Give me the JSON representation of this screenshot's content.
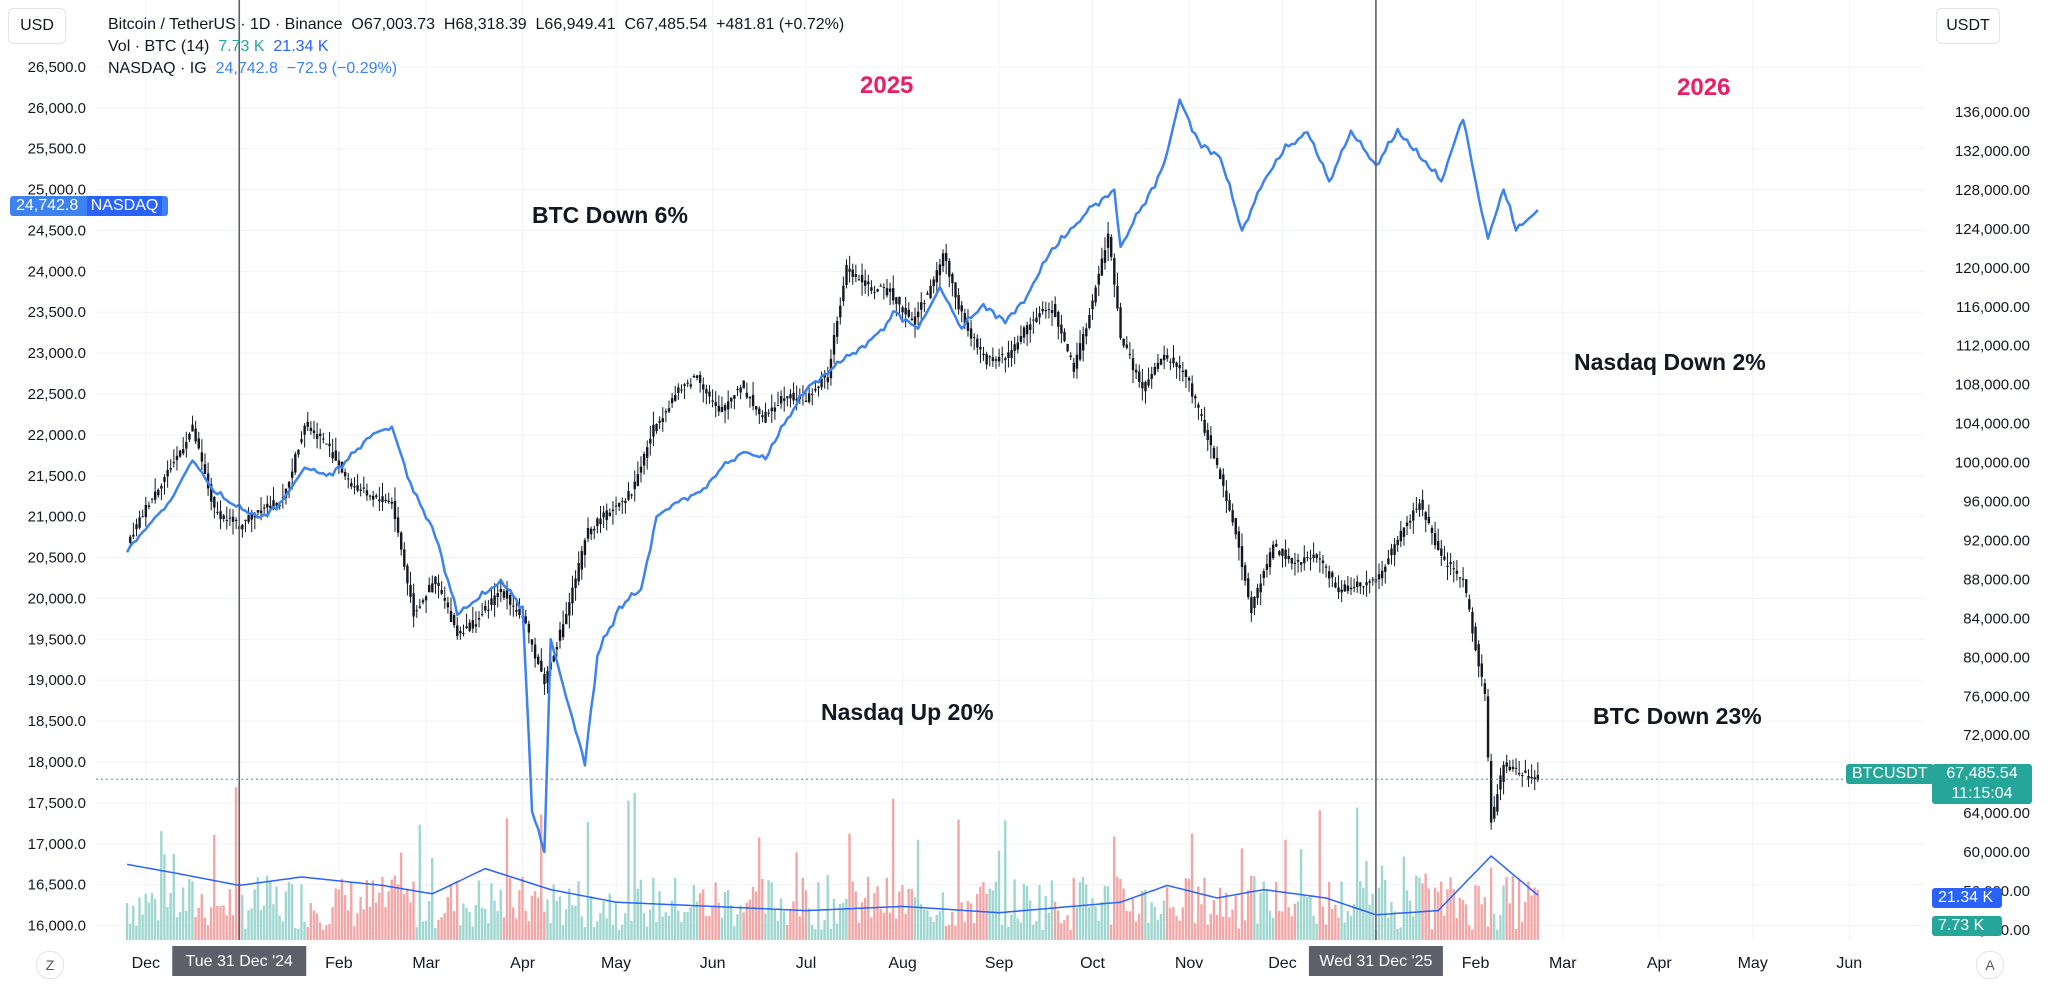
{
  "header": {
    "line1": {
      "symbol": "Bitcoin / TetherUS · 1D · Binance",
      "open": "O67,003.73",
      "high": "H68,318.39",
      "low": "L66,949.41",
      "close": "C67,485.54",
      "change": "+481.81 (+0.72%)"
    },
    "line2": {
      "label": "Vol · BTC (14)",
      "v1": "7.73 K",
      "v2": "21.34 K"
    },
    "line3": {
      "label": "NASDAQ · IG",
      "value": "24,742.8",
      "change": "−72.9 (−0.29%)"
    }
  },
  "units": {
    "left": "USD",
    "right": "USDT"
  },
  "tags": {
    "nasdaq_value": "24,742.8",
    "nasdaq_name": "NASDAQ",
    "btc_name": "BTCUSDT",
    "btc_price": "67,485.54",
    "btc_timer": "11:15:04",
    "vol_ma": "21.34 K",
    "vol": "7.73 K"
  },
  "annotations": {
    "year1": "2025",
    "year2": "2026",
    "btc_down_6": "BTC Down 6%",
    "nasdaq_down_2": "Nasdaq Down 2%",
    "nasdaq_up_20": "Nasdaq Up 20%",
    "btc_down_23": "BTC Down 23%"
  },
  "footer": {
    "z_button": "Z",
    "a_button": "A",
    "crosshair_label_1": "Tue 31 Dec '24",
    "crosshair_label_2": "Wed 31 Dec '25"
  },
  "colors": {
    "nasdaq_line": "#3c82f0",
    "candles": "#131722",
    "up_volume": "#9fd7d0",
    "down_volume": "#f3a6a6",
    "vol_ma": "#2962ff",
    "year_labels": "#e91e63",
    "btc_tag": "#26a69a"
  },
  "chart_data": {
    "type": "line",
    "title": "Bitcoin / TetherUS · 1D · Binance",
    "x_ticks": [
      "Dec",
      "Tue 31 Dec '24",
      "Feb",
      "Mar",
      "Apr",
      "May",
      "Jun",
      "Jul",
      "Aug",
      "Sep",
      "Oct",
      "Nov",
      "Dec",
      "Wed 31 Dec '25",
      "Feb",
      "Mar",
      "Apr",
      "May",
      "Jun"
    ],
    "left_axis": {
      "unit": "USD",
      "ticks": [
        "26,500.0",
        "26,000.0",
        "25,500.0",
        "25,000.0",
        "24,500.0",
        "24,000.0",
        "23,500.0",
        "23,000.0",
        "22,500.0",
        "22,000.0",
        "21,500.0",
        "21,000.0",
        "20,500.0",
        "20,000.0",
        "19,500.0",
        "19,000.0",
        "18,500.0",
        "18,000.0",
        "17,500.0",
        "17,000.0",
        "16,500.0",
        "16,000.0"
      ],
      "range": [
        15800,
        26800
      ]
    },
    "right_axis": {
      "unit": "USDT",
      "ticks": [
        "136,000.00",
        "132,000.00",
        "128,000.00",
        "124,000.00",
        "120,000.00",
        "116,000.00",
        "112,000.00",
        "108,000.00",
        "104,000.00",
        "100,000.00",
        "96,000.00",
        "92,000.00",
        "88,000.00",
        "84,000.00",
        "80,000.00",
        "76,000.00",
        "72,000.00",
        "68,000.00",
        "64,000.00",
        "60,000.00",
        "56,000.00",
        "52,000.00"
      ],
      "range": [
        51000,
        138500
      ]
    },
    "series": [
      {
        "name": "BTCUSDT",
        "axis": "right",
        "style": "candles",
        "points": [
          [
            "2024-11-25",
            91500
          ],
          [
            "2024-12-02",
            96000
          ],
          [
            "2024-12-09",
            99500
          ],
          [
            "2024-12-16",
            103500
          ],
          [
            "2024-12-23",
            95000
          ],
          [
            "2024-12-31",
            93500
          ],
          [
            "2025-01-07",
            95500
          ],
          [
            "2025-01-14",
            96000
          ],
          [
            "2025-01-21",
            104000
          ],
          [
            "2025-01-28",
            102000
          ],
          [
            "2025-02-04",
            98000
          ],
          [
            "2025-02-11",
            96500
          ],
          [
            "2025-02-18",
            96000
          ],
          [
            "2025-02-25",
            84500
          ],
          [
            "2025-03-04",
            88000
          ],
          [
            "2025-03-11",
            82500
          ],
          [
            "2025-03-18",
            84000
          ],
          [
            "2025-03-25",
            87000
          ],
          [
            "2025-04-01",
            84000
          ],
          [
            "2025-04-08",
            77500
          ],
          [
            "2025-04-15",
            84500
          ],
          [
            "2025-04-22",
            93000
          ],
          [
            "2025-04-29",
            95000
          ],
          [
            "2025-05-06",
            97000
          ],
          [
            "2025-05-13",
            103500
          ],
          [
            "2025-05-20",
            107000
          ],
          [
            "2025-05-27",
            109000
          ],
          [
            "2025-06-03",
            105000
          ],
          [
            "2025-06-10",
            108000
          ],
          [
            "2025-06-17",
            104500
          ],
          [
            "2025-06-24",
            107000
          ],
          [
            "2025-07-01",
            106500
          ],
          [
            "2025-07-08",
            109000
          ],
          [
            "2025-07-14",
            120000
          ],
          [
            "2025-07-21",
            118000
          ],
          [
            "2025-07-28",
            117500
          ],
          [
            "2025-08-04",
            114500
          ],
          [
            "2025-08-11",
            118500
          ],
          [
            "2025-08-14",
            121500
          ],
          [
            "2025-08-21",
            114000
          ],
          [
            "2025-08-28",
            110500
          ],
          [
            "2025-09-04",
            111000
          ],
          [
            "2025-09-11",
            114500
          ],
          [
            "2025-09-18",
            116000
          ],
          [
            "2025-09-25",
            109500
          ],
          [
            "2025-10-01",
            116500
          ],
          [
            "2025-10-06",
            123500
          ],
          [
            "2025-10-10",
            113000
          ],
          [
            "2025-10-17",
            107500
          ],
          [
            "2025-10-24",
            111000
          ],
          [
            "2025-10-31",
            109000
          ],
          [
            "2025-11-07",
            102500
          ],
          [
            "2025-11-14",
            95500
          ],
          [
            "2025-11-21",
            85000
          ],
          [
            "2025-11-28",
            91500
          ],
          [
            "2025-12-05",
            89500
          ],
          [
            "2025-12-12",
            90500
          ],
          [
            "2025-12-19",
            87000
          ],
          [
            "2025-12-26",
            87500
          ],
          [
            "2025-12-31",
            87800
          ],
          [
            "2026-01-07",
            92000
          ],
          [
            "2026-01-14",
            96000
          ],
          [
            "2026-01-21",
            90000
          ],
          [
            "2026-01-28",
            88000
          ],
          [
            "2026-02-04",
            76000
          ],
          [
            "2026-02-06",
            63000
          ],
          [
            "2026-02-10",
            69000
          ],
          [
            "2026-02-17",
            68000
          ],
          [
            "2026-02-21",
            67485.54
          ]
        ]
      },
      {
        "name": "NASDAQ",
        "axis": "left",
        "style": "line",
        "points": [
          [
            "2024-11-25",
            20600
          ],
          [
            "2024-12-02",
            20900
          ],
          [
            "2024-12-09",
            21200
          ],
          [
            "2024-12-16",
            21700
          ],
          [
            "2024-12-23",
            21300
          ],
          [
            "2024-12-31",
            21100
          ],
          [
            "2025-01-07",
            21000
          ],
          [
            "2025-01-14",
            21200
          ],
          [
            "2025-01-21",
            21600
          ],
          [
            "2025-01-28",
            21500
          ],
          [
            "2025-02-04",
            21700
          ],
          [
            "2025-02-11",
            22000
          ],
          [
            "2025-02-18",
            22100
          ],
          [
            "2025-02-25",
            21300
          ],
          [
            "2025-03-04",
            20800
          ],
          [
            "2025-03-11",
            19800
          ],
          [
            "2025-03-18",
            20000
          ],
          [
            "2025-03-25",
            20200
          ],
          [
            "2025-04-01",
            19900
          ],
          [
            "2025-04-04",
            17400
          ],
          [
            "2025-04-08",
            16900
          ],
          [
            "2025-04-10",
            19500
          ],
          [
            "2025-04-15",
            18800
          ],
          [
            "2025-04-21",
            18000
          ],
          [
            "2025-04-25",
            19300
          ],
          [
            "2025-05-02",
            19900
          ],
          [
            "2025-05-09",
            20100
          ],
          [
            "2025-05-14",
            21000
          ],
          [
            "2025-05-21",
            21200
          ],
          [
            "2025-05-28",
            21300
          ],
          [
            "2025-06-04",
            21600
          ],
          [
            "2025-06-11",
            21800
          ],
          [
            "2025-06-18",
            21700
          ],
          [
            "2025-06-25",
            22200
          ],
          [
            "2025-07-02",
            22600
          ],
          [
            "2025-07-09",
            22800
          ],
          [
            "2025-07-16",
            23000
          ],
          [
            "2025-07-23",
            23200
          ],
          [
            "2025-07-30",
            23500
          ],
          [
            "2025-08-06",
            23300
          ],
          [
            "2025-08-13",
            23800
          ],
          [
            "2025-08-20",
            23300
          ],
          [
            "2025-08-27",
            23600
          ],
          [
            "2025-09-03",
            23400
          ],
          [
            "2025-09-10",
            23700
          ],
          [
            "2025-09-17",
            24200
          ],
          [
            "2025-09-24",
            24500
          ],
          [
            "2025-10-01",
            24800
          ],
          [
            "2025-10-08",
            25000
          ],
          [
            "2025-10-10",
            24300
          ],
          [
            "2025-10-17",
            24800
          ],
          [
            "2025-10-24",
            25300
          ],
          [
            "2025-10-29",
            26100
          ],
          [
            "2025-11-04",
            25600
          ],
          [
            "2025-11-11",
            25400
          ],
          [
            "2025-11-18",
            24500
          ],
          [
            "2025-11-25",
            25100
          ],
          [
            "2025-12-02",
            25500
          ],
          [
            "2025-12-09",
            25700
          ],
          [
            "2025-12-16",
            25100
          ],
          [
            "2025-12-23",
            25700
          ],
          [
            "2025-12-31",
            25300
          ],
          [
            "2026-01-07",
            25700
          ],
          [
            "2026-01-14",
            25400
          ],
          [
            "2026-01-21",
            25100
          ],
          [
            "2026-01-28",
            25900
          ],
          [
            "2026-02-02",
            24900
          ],
          [
            "2026-02-05",
            24400
          ],
          [
            "2026-02-10",
            25000
          ],
          [
            "2026-02-14",
            24500
          ],
          [
            "2026-02-21",
            24742.8
          ]
        ]
      },
      {
        "name": "Vol · BTC (14)",
        "axis": "volume",
        "style": "histogram+ma",
        "last_volume": "7.73 K",
        "last_ma": "21.34 K",
        "ma_points": [
          [
            "2024-11-25",
            36
          ],
          [
            "2024-12-10",
            32
          ],
          [
            "2024-12-31",
            26
          ],
          [
            "2025-01-20",
            30
          ],
          [
            "2025-02-15",
            26
          ],
          [
            "2025-03-03",
            22
          ],
          [
            "2025-03-20",
            34
          ],
          [
            "2025-04-10",
            24
          ],
          [
            "2025-05-01",
            18
          ],
          [
            "2025-06-01",
            16
          ],
          [
            "2025-07-01",
            14
          ],
          [
            "2025-08-01",
            16
          ],
          [
            "2025-09-01",
            13
          ],
          [
            "2025-10-10",
            18
          ],
          [
            "2025-10-25",
            26
          ],
          [
            "2025-11-10",
            20
          ],
          [
            "2025-11-25",
            24
          ],
          [
            "2025-12-15",
            20
          ],
          [
            "2025-12-31",
            12
          ],
          [
            "2026-01-20",
            14
          ],
          [
            "2026-02-06",
            40
          ],
          [
            "2026-02-21",
            21.34
          ]
        ]
      }
    ],
    "crosshair_lines": [
      "2024-12-31",
      "2025-12-31"
    ],
    "current_price": 67485.54,
    "grid": true
  }
}
